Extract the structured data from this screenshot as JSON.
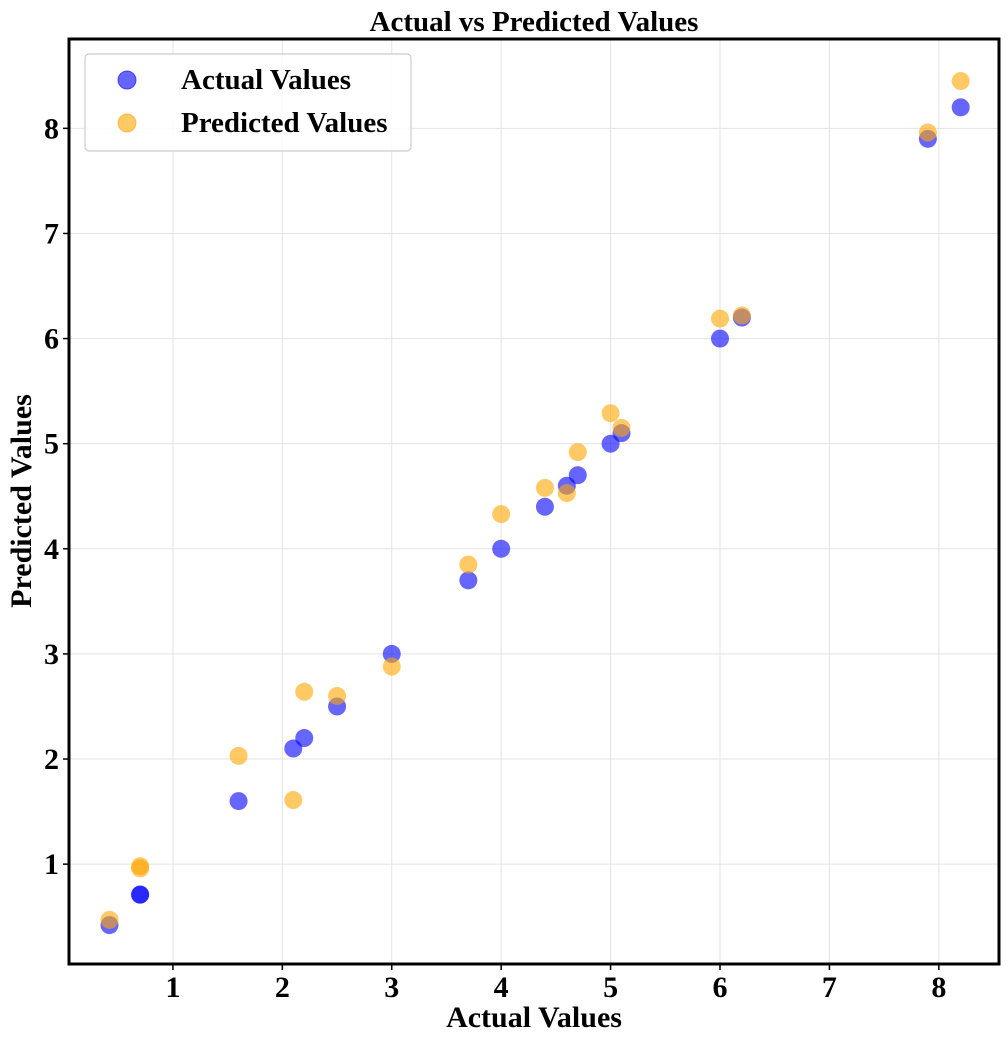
{
  "chart_data": {
    "type": "scatter",
    "title": "Actual vs Predicted Values",
    "xlabel": "Actual Values",
    "ylabel": "Predicted Values",
    "xlim": [
      0.05,
      8.55
    ],
    "ylim": [
      0.05,
      8.85
    ],
    "xticks": [
      1,
      2,
      3,
      4,
      5,
      6,
      7,
      8
    ],
    "yticks": [
      1,
      2,
      3,
      4,
      5,
      6,
      7,
      8
    ],
    "grid": true,
    "legend_position": "top-left",
    "series": [
      {
        "name": "Actual Values",
        "color": "#0000ff",
        "points": [
          [
            0.42,
            0.42
          ],
          [
            0.7,
            0.71
          ],
          [
            0.7,
            0.71
          ],
          [
            1.6,
            1.6
          ],
          [
            2.1,
            2.1
          ],
          [
            2.2,
            2.2
          ],
          [
            2.5,
            2.5
          ],
          [
            3.0,
            3.0
          ],
          [
            3.7,
            3.7
          ],
          [
            4.0,
            4.0
          ],
          [
            4.4,
            4.4
          ],
          [
            4.6,
            4.6
          ],
          [
            4.7,
            4.7
          ],
          [
            5.0,
            5.0
          ],
          [
            5.1,
            5.1
          ],
          [
            6.0,
            6.0
          ],
          [
            6.2,
            6.2
          ],
          [
            7.9,
            7.9
          ],
          [
            8.2,
            8.2
          ]
        ]
      },
      {
        "name": "Predicted Values",
        "color": "#ffa500",
        "points": [
          [
            0.42,
            0.47
          ],
          [
            0.7,
            0.96
          ],
          [
            0.7,
            0.98
          ],
          [
            1.6,
            2.03
          ],
          [
            2.1,
            1.61
          ],
          [
            2.2,
            2.64
          ],
          [
            2.5,
            2.6
          ],
          [
            3.0,
            2.88
          ],
          [
            3.7,
            3.85
          ],
          [
            4.0,
            4.33
          ],
          [
            4.4,
            4.58
          ],
          [
            4.6,
            4.53
          ],
          [
            4.7,
            4.92
          ],
          [
            5.0,
            5.29
          ],
          [
            5.1,
            5.15
          ],
          [
            6.0,
            6.19
          ],
          [
            6.2,
            6.22
          ],
          [
            7.9,
            7.96
          ],
          [
            8.2,
            8.45
          ]
        ]
      }
    ]
  }
}
